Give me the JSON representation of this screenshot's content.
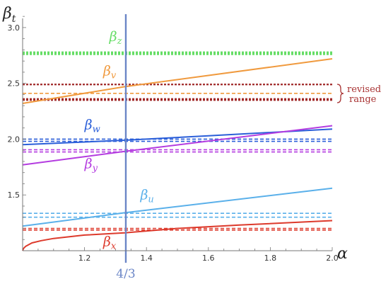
{
  "chart_data": {
    "type": "line",
    "xlabel": "α",
    "ylabel": {
      "main": "β",
      "sub": "t"
    },
    "xlim": [
      1.0,
      2.0
    ],
    "ylim": [
      1.0,
      3.12
    ],
    "xticks": [
      {
        "value": 1.2,
        "label": "1.2"
      },
      {
        "value": 1.4,
        "label": "1.4"
      },
      {
        "value": 1.6,
        "label": "1.6"
      },
      {
        "value": 1.8,
        "label": "1.8"
      },
      {
        "value": 2.0,
        "label": "2.0"
      }
    ],
    "yticks": [
      {
        "value": 1.5,
        "label": "1.5"
      },
      {
        "value": 2.0,
        "label": "2.0"
      },
      {
        "value": 2.5,
        "label": "2.5"
      },
      {
        "value": 3.0,
        "label": "3.0"
      }
    ],
    "grid": false,
    "vertical_marker": {
      "x": 1.3333,
      "label": "4/3",
      "color": "#6b86c7"
    },
    "series": [
      {
        "name": "z",
        "color": "#66dd66",
        "label_x": 1.28,
        "label_y": 2.88,
        "points": [
          [
            1.0,
            2.77
          ],
          [
            2.0,
            2.77
          ]
        ],
        "levels": [
          {
            "y": 2.78,
            "dash": "3,2",
            "width": 2
          },
          {
            "y": 2.77,
            "dash": "3,2",
            "width": 2
          },
          {
            "y": 2.76,
            "dash": "3,2",
            "width": 2
          }
        ]
      },
      {
        "name": "v",
        "color": "#f09a3e",
        "label_x": 1.26,
        "label_y": 2.57,
        "points": [
          [
            1.0,
            2.32
          ],
          [
            1.33,
            2.47
          ],
          [
            2.0,
            2.72
          ]
        ],
        "levels": [
          {
            "y": 2.41,
            "dash": "5,3",
            "width": 1.6
          }
        ]
      },
      {
        "name": "w",
        "color": "#2b5fd9",
        "label_x": 1.2,
        "label_y": 2.09,
        "points": [
          [
            1.0,
            1.95
          ],
          [
            1.33,
            1.99
          ],
          [
            1.6,
            2.03
          ],
          [
            2.0,
            2.09
          ]
        ],
        "levels": [
          {
            "y": 2.0,
            "dash": "5,3",
            "width": 1.6
          },
          {
            "y": 1.98,
            "dash": "5,3",
            "width": 1.6
          }
        ]
      },
      {
        "name": "y",
        "color": "#b43ce0",
        "label_x": 1.2,
        "label_y": 1.74,
        "points": [
          [
            1.0,
            1.77
          ],
          [
            1.33,
            1.89
          ],
          [
            2.0,
            2.12
          ]
        ],
        "levels": [
          {
            "y": 1.905,
            "dash": "5,3",
            "width": 1.6
          },
          {
            "y": 1.885,
            "dash": "5,3",
            "width": 1.6
          }
        ]
      },
      {
        "name": "u",
        "color": "#5ab0ea",
        "label_x": 1.38,
        "label_y": 1.46,
        "points": [
          [
            1.0,
            1.22
          ],
          [
            1.33,
            1.34
          ],
          [
            2.0,
            1.56
          ]
        ],
        "levels": [
          {
            "y": 1.335,
            "dash": "5,3",
            "width": 1.6
          },
          {
            "y": 1.3,
            "dash": "5,3",
            "width": 1.6
          }
        ]
      },
      {
        "name": "x",
        "color": "#dd3a2c",
        "label_x": 1.26,
        "label_y": 1.04,
        "points": [
          [
            1.0,
            1.0
          ],
          [
            1.003,
            1.02
          ],
          [
            1.01,
            1.04
          ],
          [
            1.03,
            1.07
          ],
          [
            1.06,
            1.09
          ],
          [
            1.1,
            1.11
          ],
          [
            1.2,
            1.14
          ],
          [
            1.33,
            1.16
          ],
          [
            1.5,
            1.2
          ],
          [
            1.7,
            1.23
          ],
          [
            2.0,
            1.27
          ]
        ],
        "levels": [
          {
            "y": 1.2,
            "dash": "5,3",
            "width": 1.6
          },
          {
            "y": 1.185,
            "dash": "5,3",
            "width": 1.6
          }
        ]
      }
    ],
    "range_lines": {
      "color": "#a02828",
      "levels": [
        2.49,
        2.36,
        2.35
      ]
    },
    "annotations": [
      {
        "text": "revised",
        "color": "#a83232"
      },
      {
        "text": "range",
        "color": "#a83232"
      }
    ]
  }
}
